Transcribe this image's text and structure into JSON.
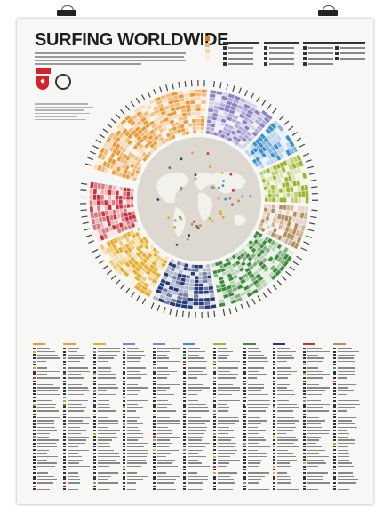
{
  "poster": {
    "title": "SURFING WORLDWIDE",
    "map_caption": "World map with surf spot markers"
  },
  "colors": {
    "red": "#c8323c",
    "orange": "#ee9a38",
    "purple": "#8a82c4",
    "blue": "#3b8fd0",
    "lime": "#9fb62c",
    "tan": "#b58e5e",
    "green": "#3e8a3a",
    "navy": "#253a78",
    "yellow": "#e9ad2c",
    "map_bg": "#ddd9d0",
    "land": "#f2f1ec"
  },
  "region_colors": [
    "orange",
    "purple",
    "blue",
    "lime",
    "tan",
    "green",
    "navy",
    "yellow",
    "red"
  ]
}
